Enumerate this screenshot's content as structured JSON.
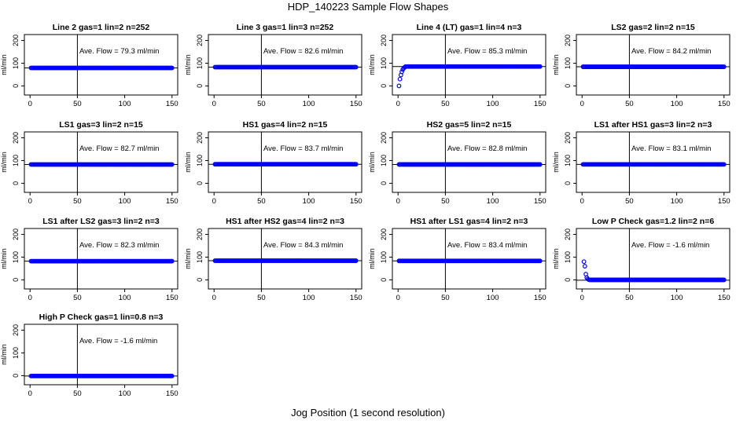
{
  "figure": {
    "title": "HDP_140223  Sample Flow Shapes",
    "xlabel": "Jog Position (1 second resolution)",
    "ylabel": "ml/min",
    "flow_prefix": "Ave. Flow = ",
    "flow_unit": "ml/min"
  },
  "chart_data": [
    {
      "type": "scatter",
      "title": "Line 2 gas=1 lin=2 n=252",
      "ave_flow": "79.3",
      "xlim": [
        0,
        150
      ],
      "ylim": [
        0,
        200
      ],
      "xticks": [
        0,
        50,
        100,
        150
      ],
      "yticks": [
        0,
        100,
        200
      ],
      "vline": 50,
      "hline": 79.3,
      "marker_color": "#0000ff",
      "points": {
        "shape": "flat",
        "value": 79.3
      }
    },
    {
      "type": "scatter",
      "title": "Line 3 gas=1 lin=3 n=252",
      "ave_flow": "82.6",
      "xlim": [
        0,
        150
      ],
      "ylim": [
        0,
        200
      ],
      "xticks": [
        0,
        50,
        100,
        150
      ],
      "yticks": [
        0,
        100,
        200
      ],
      "vline": 50,
      "hline": 82.6,
      "marker_color": "#0000ff",
      "points": {
        "shape": "flat",
        "value": 82.6
      }
    },
    {
      "type": "scatter",
      "title": "Line 4 (LT) gas=1 lin=4 n=3",
      "ave_flow": "85.3",
      "xlim": [
        0,
        150
      ],
      "ylim": [
        0,
        200
      ],
      "xticks": [
        0,
        50,
        100,
        150
      ],
      "yticks": [
        0,
        100,
        200
      ],
      "vline": 50,
      "hline": 85.3,
      "marker_color": "#0000ff",
      "points": {
        "shape": "ramp",
        "start": [
          [
            1,
            0
          ],
          [
            2,
            30
          ],
          [
            3,
            48
          ],
          [
            4,
            62
          ],
          [
            5,
            72
          ],
          [
            6,
            78
          ],
          [
            7,
            82
          ]
        ],
        "value": 85.3
      }
    },
    {
      "type": "scatter",
      "title": "LS2 gas=2 lin=2 n=15",
      "ave_flow": "84.2",
      "xlim": [
        0,
        150
      ],
      "ylim": [
        0,
        200
      ],
      "xticks": [
        0,
        50,
        100,
        150
      ],
      "yticks": [
        0,
        100,
        200
      ],
      "vline": 50,
      "hline": 84.2,
      "marker_color": "#0000ff",
      "points": {
        "shape": "flat",
        "value": 84.2
      }
    },
    {
      "type": "scatter",
      "title": "LS1 gas=3 lin=2 n=15",
      "ave_flow": "82.7",
      "xlim": [
        0,
        150
      ],
      "ylim": [
        0,
        200
      ],
      "xticks": [
        0,
        50,
        100,
        150
      ],
      "yticks": [
        0,
        100,
        200
      ],
      "vline": 50,
      "hline": 82.7,
      "marker_color": "#0000ff",
      "points": {
        "shape": "flat",
        "value": 82.7
      }
    },
    {
      "type": "scatter",
      "title": "HS1 gas=4 lin=2 n=15",
      "ave_flow": "83.7",
      "xlim": [
        0,
        150
      ],
      "ylim": [
        0,
        200
      ],
      "xticks": [
        0,
        50,
        100,
        150
      ],
      "yticks": [
        0,
        100,
        200
      ],
      "vline": 50,
      "hline": 83.7,
      "marker_color": "#0000ff",
      "points": {
        "shape": "flat",
        "value": 83.7
      }
    },
    {
      "type": "scatter",
      "title": "HS2 gas=5 lin=2 n=15",
      "ave_flow": "82.8",
      "xlim": [
        0,
        150
      ],
      "ylim": [
        0,
        200
      ],
      "xticks": [
        0,
        50,
        100,
        150
      ],
      "yticks": [
        0,
        100,
        200
      ],
      "vline": 50,
      "hline": 82.8,
      "marker_color": "#0000ff",
      "points": {
        "shape": "flat",
        "value": 82.8
      }
    },
    {
      "type": "scatter",
      "title": "LS1 after HS1 gas=3 lin=2 n=3",
      "ave_flow": "83.1",
      "xlim": [
        0,
        150
      ],
      "ylim": [
        0,
        200
      ],
      "xticks": [
        0,
        50,
        100,
        150
      ],
      "yticks": [
        0,
        100,
        200
      ],
      "vline": 50,
      "hline": 83.1,
      "marker_color": "#0000ff",
      "points": {
        "shape": "flat",
        "value": 83.1
      }
    },
    {
      "type": "scatter",
      "title": "LS1 after LS2 gas=3 lin=2 n=3",
      "ave_flow": "82.3",
      "xlim": [
        0,
        150
      ],
      "ylim": [
        0,
        200
      ],
      "xticks": [
        0,
        50,
        100,
        150
      ],
      "yticks": [
        0,
        100,
        200
      ],
      "vline": 50,
      "hline": 82.3,
      "marker_color": "#0000ff",
      "points": {
        "shape": "flat",
        "value": 82.3
      }
    },
    {
      "type": "scatter",
      "title": "HS1 after HS2 gas=4 lin=2 n=3",
      "ave_flow": "84.3",
      "xlim": [
        0,
        150
      ],
      "ylim": [
        0,
        200
      ],
      "xticks": [
        0,
        50,
        100,
        150
      ],
      "yticks": [
        0,
        100,
        200
      ],
      "vline": 50,
      "hline": 84.3,
      "marker_color": "#0000ff",
      "points": {
        "shape": "flat",
        "value": 84.3
      }
    },
    {
      "type": "scatter",
      "title": "HS1 after LS1 gas=4 lin=2 n=3",
      "ave_flow": "83.4",
      "xlim": [
        0,
        150
      ],
      "ylim": [
        0,
        200
      ],
      "xticks": [
        0,
        50,
        100,
        150
      ],
      "yticks": [
        0,
        100,
        200
      ],
      "vline": 50,
      "hline": 83.4,
      "marker_color": "#0000ff",
      "points": {
        "shape": "flat",
        "value": 83.4
      }
    },
    {
      "type": "scatter",
      "title": "Low P Check gas=1.2 lin=2 n=6",
      "ave_flow": "-1.6",
      "xlim": [
        0,
        150
      ],
      "ylim": [
        0,
        200
      ],
      "xticks": [
        0,
        50,
        100,
        150
      ],
      "yticks": [
        0,
        100,
        200
      ],
      "vline": 50,
      "hline": -1.6,
      "marker_color": "#0000ff",
      "points": {
        "shape": "decay",
        "start": [
          [
            2,
            80
          ],
          [
            3,
            60
          ],
          [
            4,
            25
          ],
          [
            5,
            10
          ],
          [
            6,
            4
          ],
          [
            7,
            1
          ]
        ],
        "value": 0
      }
    },
    {
      "type": "scatter",
      "title": "High P Check gas=1 lin=0.8 n=3",
      "ave_flow": "-1.6",
      "xlim": [
        0,
        150
      ],
      "ylim": [
        0,
        200
      ],
      "xticks": [
        0,
        50,
        100,
        150
      ],
      "yticks": [
        0,
        100,
        200
      ],
      "vline": 50,
      "hline": -1.6,
      "marker_color": "#0000ff",
      "points": {
        "shape": "flat",
        "value": -1.6
      }
    }
  ]
}
